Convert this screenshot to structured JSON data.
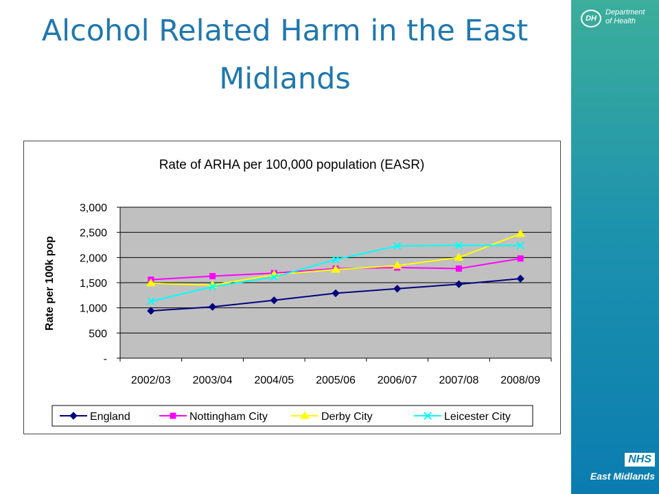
{
  "slide": {
    "title": "Alcohol Related Harm in the East Midlands"
  },
  "branding": {
    "dh_abbrev": "DH",
    "dh_line1": "Department",
    "dh_line2": "of Health",
    "nhs_badge": "NHS",
    "nhs_region": "East Midlands"
  },
  "chart_data": {
    "type": "line",
    "title": "Rate of ARHA per 100,000 population (EASR)",
    "xlabel": "",
    "ylabel": "Rate per 100k pop",
    "ylim": [
      0,
      3000
    ],
    "yticks": [
      0,
      500,
      1000,
      1500,
      2000,
      2500,
      3000
    ],
    "ytick_labels": [
      "-",
      "500",
      "1,000",
      "1,500",
      "2,000",
      "2,500",
      "3,000"
    ],
    "categories": [
      "2002/03",
      "2003/04",
      "2004/05",
      "2005/06",
      "2006/07",
      "2007/08",
      "2008/09"
    ],
    "grid": "horizontal",
    "legend": "bottom",
    "plot_background": "#c0c0c0",
    "series": [
      {
        "name": "England",
        "color": "#000080",
        "marker": "diamond",
        "values": [
          940,
          1020,
          1150,
          1290,
          1380,
          1470,
          1580
        ]
      },
      {
        "name": "Nottingham City",
        "color": "#ff00ff",
        "marker": "square",
        "values": [
          1560,
          1630,
          1690,
          1780,
          1800,
          1780,
          1980
        ]
      },
      {
        "name": "Derby City",
        "color": "#ffff00",
        "marker": "triangle",
        "values": [
          1490,
          1450,
          1660,
          1760,
          1840,
          2000,
          2470
        ]
      },
      {
        "name": "Leicester City",
        "color": "#00ffff",
        "marker": "x",
        "values": [
          1130,
          1420,
          1610,
          1960,
          2230,
          2240,
          2240
        ]
      }
    ]
  }
}
